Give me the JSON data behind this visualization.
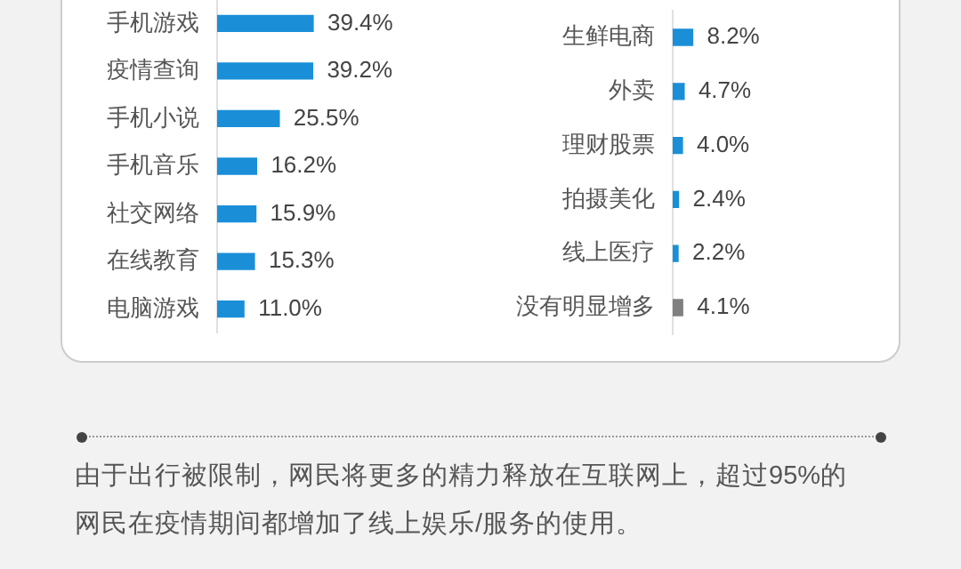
{
  "chart_data": [
    {
      "type": "bar",
      "orientation": "horizontal",
      "categories": [
        "手机游戏",
        "疫情查询",
        "手机小说",
        "手机音乐",
        "社交网络",
        "在线教育",
        "电脑游戏"
      ],
      "values": [
        39.4,
        39.2,
        25.5,
        16.2,
        15.9,
        15.3,
        11.0
      ],
      "value_labels": [
        "39.4%",
        "39.2%",
        "25.5%",
        "16.2%",
        "15.9%",
        "15.3%",
        "11.0%"
      ],
      "colors": [
        "#1a8fd8",
        "#1a8fd8",
        "#1a8fd8",
        "#1a8fd8",
        "#1a8fd8",
        "#1a8fd8",
        "#1a8fd8"
      ],
      "legend": false,
      "tick_labels": "y",
      "annotations": [
        "由于出行被限制，网民将更多的精力释放在互联网上，超过95%的网民在疫情期间都增加了线上娱乐/服务的使用。"
      ]
    },
    {
      "type": "bar",
      "orientation": "horizontal",
      "categories": [
        "生鲜电商",
        "外卖",
        "理财股票",
        "拍摄美化",
        "线上医疗",
        "没有明显增多"
      ],
      "values": [
        8.2,
        4.7,
        4.0,
        2.4,
        2.2,
        4.1
      ],
      "value_labels": [
        "8.2%",
        "4.7%",
        "4.0%",
        "2.4%",
        "2.2%",
        "4.1%"
      ],
      "colors": [
        "#1a8fd8",
        "#1a8fd8",
        "#1a8fd8",
        "#1a8fd8",
        "#1a8fd8",
        "#808080"
      ],
      "legend": false,
      "tick_labels": "y"
    }
  ]
}
